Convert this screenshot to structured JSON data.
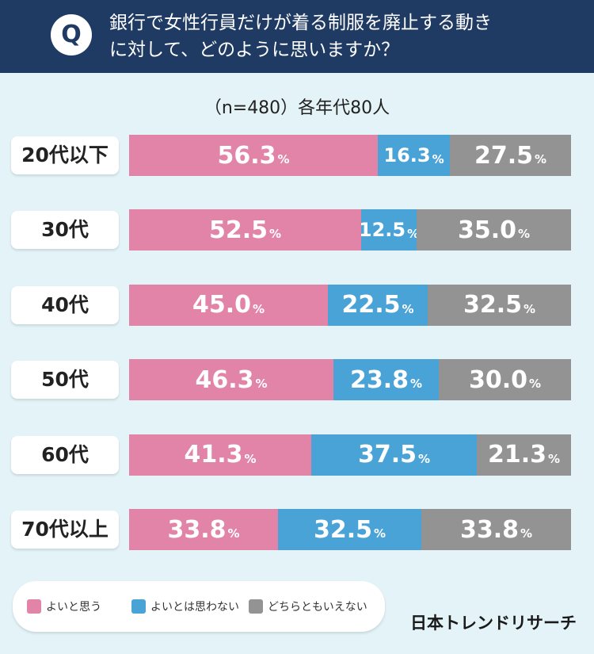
{
  "header": {
    "badge": "Q",
    "question_line1": "銀行で女性行員だけが着る制服を廃止する動き",
    "question_line2": "に対して、どのように思いますか？"
  },
  "sample_note": "（n=480）各年代80人",
  "colors": {
    "agree": "#e284a8",
    "disagree": "#4aa3d6",
    "neutral": "#939393",
    "header_bg": "#1f3b63",
    "page_bg": "#e3f3f7"
  },
  "chart_data": {
    "type": "bar",
    "orientation": "horizontal",
    "stacked": true,
    "percent_scale": true,
    "title": "銀行で女性行員だけが着る制服を廃止する動きに対して、どのように思いますか？",
    "subtitle": "（n=480）各年代80人",
    "categories": [
      "20代以下",
      "30代",
      "40代",
      "50代",
      "60代",
      "70代以上"
    ],
    "unit": "%",
    "series": [
      {
        "name": "よいと思う",
        "values": [
          56.3,
          52.5,
          45.0,
          46.3,
          41.3,
          33.8
        ]
      },
      {
        "name": "よいとは思わない",
        "values": [
          16.3,
          12.5,
          22.5,
          23.8,
          37.5,
          32.5
        ]
      },
      {
        "name": "どちらともいえない",
        "values": [
          27.5,
          35.0,
          32.5,
          30.0,
          21.3,
          33.8
        ]
      }
    ],
    "legend_position": "bottom-left"
  },
  "legend": {
    "items": [
      "よいと思う",
      "よいとは思わない",
      "どちらともいえない"
    ]
  },
  "brand": "日本トレンドリサーチ"
}
